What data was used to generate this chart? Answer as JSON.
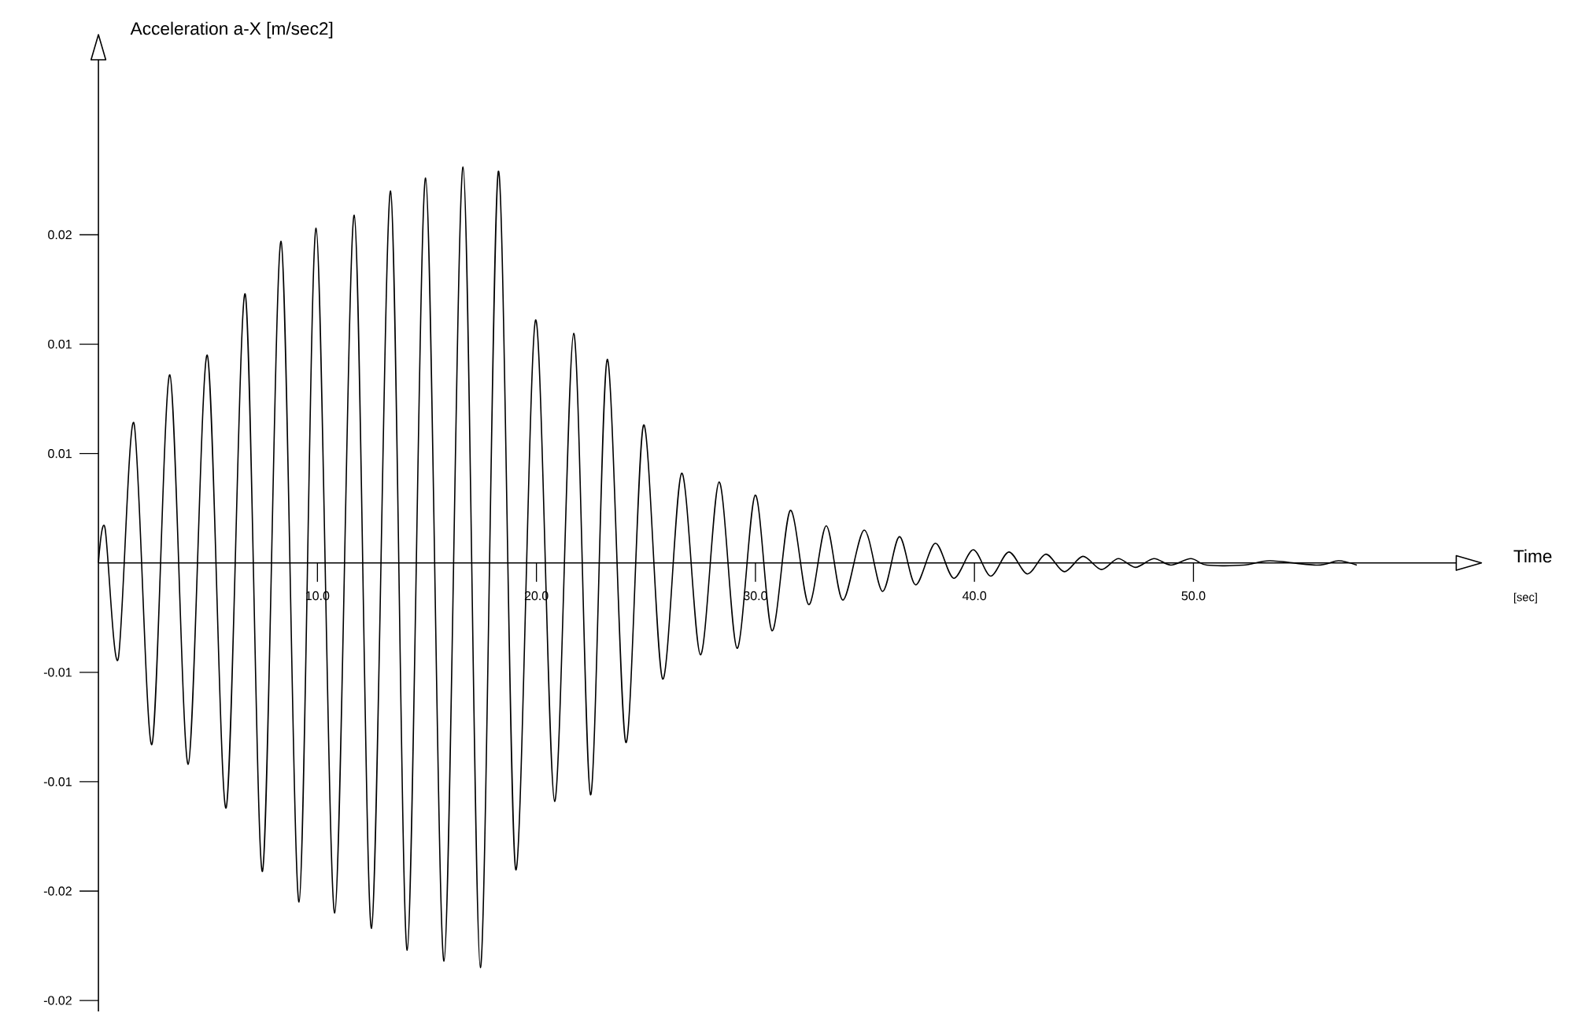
{
  "chart_data": {
    "type": "line",
    "xlabel": "Time",
    "ylabel": "Acceleration a-X [m/sec2]",
    "annotations": [
      "[sec]"
    ],
    "color": "#000000",
    "marker": "none",
    "line_style": "solid",
    "x": [
      0,
      0.3,
      0.9,
      1.62,
      2.44,
      3.26,
      4.1,
      4.97,
      5.83,
      6.7,
      7.49,
      8.34,
      9.16,
      9.94,
      10.79,
      11.68,
      12.47,
      13.34,
      14.1,
      14.94,
      15.78,
      16.65,
      17.44,
      18.26,
      19.05,
      19.96,
      20.83,
      21.7,
      22.47,
      23.23,
      24.08,
      24.89,
      25.76,
      26.63,
      27.49,
      28.34,
      29.16,
      29.99,
      30.76,
      31.59,
      32.43,
      33.23,
      33.99,
      34.96,
      35.8,
      36.57,
      37.31,
      38.21,
      39.05,
      39.94,
      40.74,
      41.57,
      42.42,
      43.26,
      44.1,
      44.95,
      45.79,
      46.56,
      47.35,
      48.19,
      48.97,
      49.88,
      50.61,
      52.29,
      53.49,
      55.66,
      56.62,
      57.46
    ],
    "values": [
      0,
      0.0016,
      -0.0044,
      0.0064,
      -0.0083,
      0.0086,
      -0.0092,
      0.0095,
      -0.0112,
      0.0123,
      -0.0141,
      0.0147,
      -0.0155,
      0.0153,
      -0.016,
      0.0159,
      -0.0167,
      0.017,
      -0.0177,
      0.0176,
      -0.0182,
      0.0181,
      -0.0185,
      0.0179,
      -0.014,
      0.0111,
      -0.0109,
      0.0105,
      -0.0106,
      0.0093,
      -0.0082,
      0.0063,
      -0.0053,
      0.0041,
      -0.0042,
      0.0037,
      -0.0039,
      0.0031,
      -0.0031,
      0.0024,
      -0.0019,
      0.0017,
      -0.0017,
      0.0015,
      -0.0013,
      0.0012,
      -0.001,
      0.0009,
      -0.0007,
      0.0006,
      -0.0006,
      0.0005,
      -0.0005,
      0.0004,
      -0.0004,
      0.0003,
      -0.0003,
      0.0002,
      -0.0002,
      0.0002,
      -0.0001,
      0.0002,
      -0.0001,
      -0.0001,
      0.0001,
      -0.0001,
      0.0001,
      -0.0001
    ],
    "xlim": [
      0,
      62
    ],
    "ylim": [
      -0.0205,
      0.023
    ],
    "xticks": [
      {
        "value": 10,
        "label": "10.0"
      },
      {
        "value": 20,
        "label": "20.0"
      },
      {
        "value": 30,
        "label": "30.0"
      },
      {
        "value": 40,
        "label": "40.0"
      },
      {
        "value": 50,
        "label": "50.0"
      }
    ],
    "yticks": [
      {
        "value": -0.02,
        "label": "-0.02"
      },
      {
        "value": -0.015,
        "label": "-0.02"
      },
      {
        "value": -0.01,
        "label": "-0.01"
      },
      {
        "value": -0.005,
        "label": "-0.01"
      },
      {
        "value": 0.005,
        "label": "0.01"
      },
      {
        "value": 0.01,
        "label": "0.01"
      },
      {
        "value": 0.015,
        "label": "0.02"
      }
    ]
  }
}
